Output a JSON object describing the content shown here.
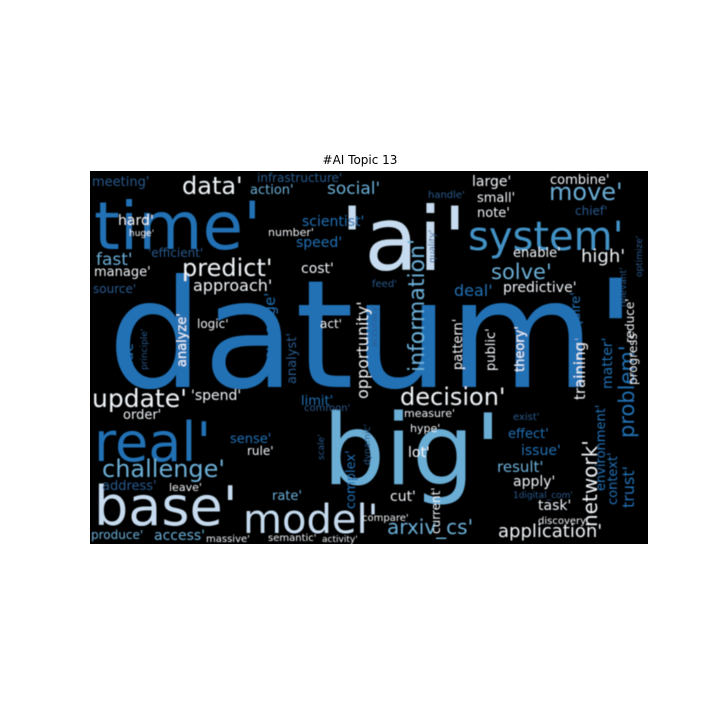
{
  "title": "#AI Topic 13",
  "colors": {
    "background": "#000000",
    "deep": "#2171b5",
    "mid": "#4292c6",
    "light": "#6baed6",
    "pale": "#c6dbef",
    "white": "#f0f4f8",
    "dim": "#2b5a8e"
  },
  "words": [
    {
      "text": "datum'",
      "tone": "deep"
    },
    {
      "text": "'ai'",
      "tone": "pale"
    },
    {
      "text": "big'",
      "tone": "light"
    },
    {
      "text": "time'",
      "tone": "deep"
    },
    {
      "text": "base'",
      "tone": "pale"
    },
    {
      "text": "real'",
      "tone": "deep"
    },
    {
      "text": "system'",
      "tone": "mid"
    },
    {
      "text": "model'",
      "tone": "pale"
    },
    {
      "text": "information'",
      "tone": "light"
    },
    {
      "text": "decision'",
      "tone": "white"
    },
    {
      "text": "update'",
      "tone": "white"
    },
    {
      "text": "challenge'",
      "tone": "light"
    },
    {
      "text": "predict'",
      "tone": "white"
    },
    {
      "text": "data'",
      "tone": "white"
    },
    {
      "text": "move'",
      "tone": "light"
    },
    {
      "text": "solve'",
      "tone": "light"
    },
    {
      "text": "network'",
      "tone": "white"
    },
    {
      "text": "problem'",
      "tone": "deep"
    },
    {
      "text": "arxiv_cs'",
      "tone": "light"
    },
    {
      "text": "application'",
      "tone": "white"
    },
    {
      "text": "social'",
      "tone": "light"
    },
    {
      "text": "opportunity'",
      "tone": "white"
    },
    {
      "text": "approach'",
      "tone": "white"
    },
    {
      "text": "fast'",
      "tone": "light"
    },
    {
      "text": "high'",
      "tone": "white"
    },
    {
      "text": "deal'",
      "tone": "deep"
    },
    {
      "text": "result'",
      "tone": "light"
    },
    {
      "text": "training'",
      "tone": "white"
    },
    {
      "text": "trust'",
      "tone": "deep"
    },
    {
      "text": "knowledge'",
      "tone": "deep"
    },
    {
      "text": "matter'",
      "tone": "deep"
    },
    {
      "text": "large'",
      "tone": "white"
    },
    {
      "text": "combine'",
      "tone": "white"
    },
    {
      "text": "meeting'",
      "tone": "dim"
    },
    {
      "text": "action'",
      "tone": "light"
    },
    {
      "text": "infrastructure'",
      "tone": "dim"
    },
    {
      "text": "small'",
      "tone": "white"
    },
    {
      "text": "note'",
      "tone": "white"
    },
    {
      "text": "chief'",
      "tone": "dim"
    },
    {
      "text": "handle'",
      "tone": "dim"
    },
    {
      "text": "scientist'",
      "tone": "deep"
    },
    {
      "text": "hard'",
      "tone": "white"
    },
    {
      "text": "huge'",
      "tone": "white"
    },
    {
      "text": "number'",
      "tone": "white"
    },
    {
      "text": "speed'",
      "tone": "deep"
    },
    {
      "text": "quality'",
      "tone": "dim"
    },
    {
      "text": "'efficient'",
      "tone": "dim"
    },
    {
      "text": "cost'",
      "tone": "white"
    },
    {
      "text": "enable'",
      "tone": "white"
    },
    {
      "text": "optimize'",
      "tone": "dim"
    },
    {
      "text": "manage'",
      "tone": "white"
    },
    {
      "text": "source'",
      "tone": "dim"
    },
    {
      "text": "feed'",
      "tone": "dim"
    },
    {
      "text": "predictive'",
      "tone": "white"
    },
    {
      "text": "relevant'",
      "tone": "dim"
    },
    {
      "text": "logic'",
      "tone": "white"
    },
    {
      "text": "act'",
      "tone": "white"
    },
    {
      "text": "pattern'",
      "tone": "white"
    },
    {
      "text": "require'",
      "tone": "deep"
    },
    {
      "text": "reduce'",
      "tone": "white"
    },
    {
      "text": "side'",
      "tone": "deep"
    },
    {
      "text": "principle'",
      "tone": "dim"
    },
    {
      "text": "analyze'",
      "tone": "white"
    },
    {
      "text": "analyst'",
      "tone": "dim"
    },
    {
      "text": "accuracy'",
      "tone": "dim"
    },
    {
      "text": "public'",
      "tone": "white"
    },
    {
      "text": "theory'",
      "tone": "white"
    },
    {
      "text": "progress'",
      "tone": "white"
    },
    {
      "text": "'spend'",
      "tone": "white"
    },
    {
      "text": "order'",
      "tone": "white"
    },
    {
      "text": "limit'",
      "tone": "deep"
    },
    {
      "text": "common'",
      "tone": "dim"
    },
    {
      "text": "measure'",
      "tone": "white"
    },
    {
      "text": "exist'",
      "tone": "dim"
    },
    {
      "text": "hype'",
      "tone": "white"
    },
    {
      "text": "effect'",
      "tone": "deep"
    },
    {
      "text": "sense'",
      "tone": "deep"
    },
    {
      "text": "rule'",
      "tone": "white"
    },
    {
      "text": "issue'",
      "tone": "deep"
    },
    {
      "text": "environment'",
      "tone": "deep"
    },
    {
      "text": "context'",
      "tone": "deep"
    },
    {
      "text": "scale'",
      "tone": "dim"
    },
    {
      "text": "dynamic'",
      "tone": "dim"
    },
    {
      "text": "lot'",
      "tone": "white"
    },
    {
      "text": "complex'",
      "tone": "deep"
    },
    {
      "text": "address'",
      "tone": "dim"
    },
    {
      "text": "leave'",
      "tone": "white"
    },
    {
      "text": "apply'",
      "tone": "white"
    },
    {
      "text": "1digital_com'",
      "tone": "dim"
    },
    {
      "text": "rate'",
      "tone": "light"
    },
    {
      "text": "cut'",
      "tone": "white"
    },
    {
      "text": "current'",
      "tone": "white"
    },
    {
      "text": "task'",
      "tone": "white"
    },
    {
      "text": "compare'",
      "tone": "white"
    },
    {
      "text": "discovery'",
      "tone": "white"
    },
    {
      "text": "produce'",
      "tone": "light"
    },
    {
      "text": "access'",
      "tone": "light"
    },
    {
      "text": "massive'",
      "tone": "white"
    },
    {
      "text": "semantic'",
      "tone": "white"
    },
    {
      "text": "activity'",
      "tone": "white"
    }
  ]
}
